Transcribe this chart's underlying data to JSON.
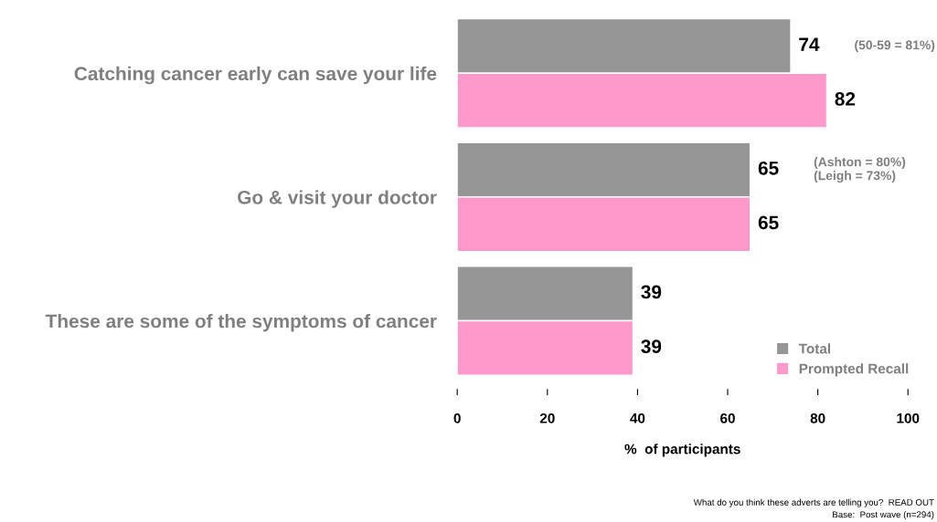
{
  "chart_data": {
    "type": "bar",
    "orientation": "horizontal",
    "categories": [
      "Catching cancer early can save your life",
      "Go & visit your doctor",
      "These are some of the symptoms of cancer"
    ],
    "series": [
      {
        "name": "Total",
        "color": "#969696",
        "values": [
          74,
          65,
          39
        ]
      },
      {
        "name": "Prompted Recall",
        "color": "#ff99cc",
        "values": [
          82,
          65,
          39
        ]
      }
    ],
    "xlim": [
      0,
      100
    ],
    "xticks": [
      0,
      20,
      40,
      60,
      80,
      100
    ],
    "xlabel": "%  of participants",
    "data_labels": true,
    "legend": "bottom right",
    "grid": false,
    "annotations": [
      "(50-59 = 81%)",
      "(Ashton = 80%)\n(Leigh = 73%)",
      "What do you think these adverts are telling you?  READ OUT\nBase:  Post wave (n=294)"
    ]
  }
}
